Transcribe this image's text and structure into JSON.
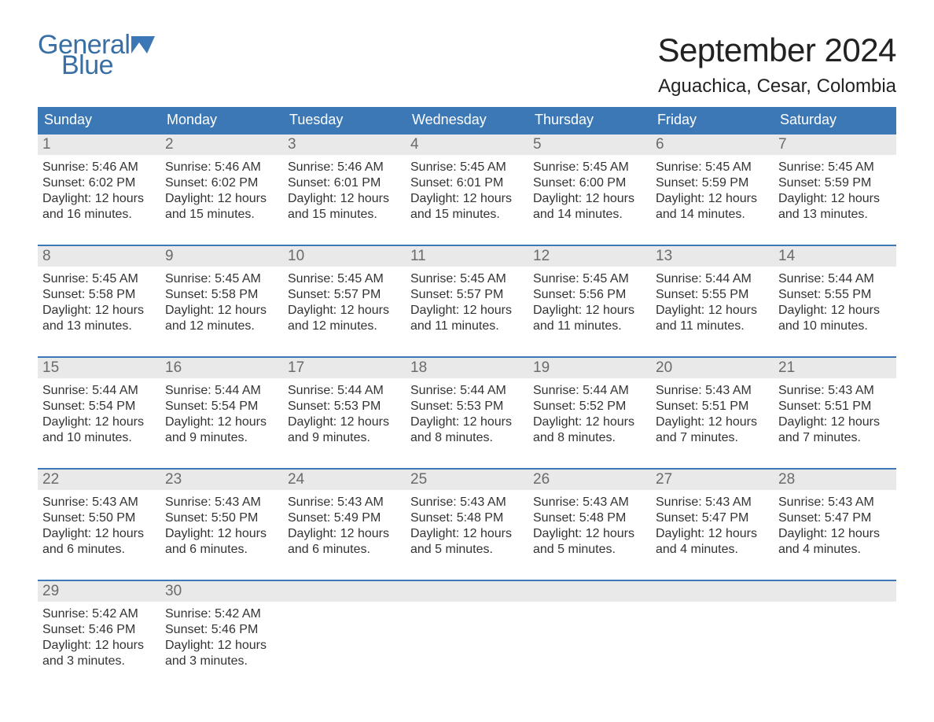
{
  "logo": {
    "text_top": "General",
    "text_bottom": "Blue",
    "accent_color": "#3b78b5"
  },
  "title": "September 2024",
  "location": "Aguachica, Cesar, Colombia",
  "colors": {
    "header_bg": "#3b78b5",
    "header_text": "#ffffff",
    "daynum_bg": "#e9e9e9",
    "daynum_text": "#6b6b6b",
    "rule": "#3b78b5",
    "body_text": "#333333",
    "background": "#ffffff"
  },
  "typography": {
    "title_fontsize": 42,
    "location_fontsize": 24,
    "dow_fontsize": 18,
    "daynum_fontsize": 19,
    "info_fontsize": 16
  },
  "days_of_week": [
    "Sunday",
    "Monday",
    "Tuesday",
    "Wednesday",
    "Thursday",
    "Friday",
    "Saturday"
  ],
  "weeks": [
    [
      {
        "n": "1",
        "sunrise": "Sunrise: 5:46 AM",
        "sunset": "Sunset: 6:02 PM",
        "dl1": "Daylight: 12 hours",
        "dl2": "and 16 minutes."
      },
      {
        "n": "2",
        "sunrise": "Sunrise: 5:46 AM",
        "sunset": "Sunset: 6:02 PM",
        "dl1": "Daylight: 12 hours",
        "dl2": "and 15 minutes."
      },
      {
        "n": "3",
        "sunrise": "Sunrise: 5:46 AM",
        "sunset": "Sunset: 6:01 PM",
        "dl1": "Daylight: 12 hours",
        "dl2": "and 15 minutes."
      },
      {
        "n": "4",
        "sunrise": "Sunrise: 5:45 AM",
        "sunset": "Sunset: 6:01 PM",
        "dl1": "Daylight: 12 hours",
        "dl2": "and 15 minutes."
      },
      {
        "n": "5",
        "sunrise": "Sunrise: 5:45 AM",
        "sunset": "Sunset: 6:00 PM",
        "dl1": "Daylight: 12 hours",
        "dl2": "and 14 minutes."
      },
      {
        "n": "6",
        "sunrise": "Sunrise: 5:45 AM",
        "sunset": "Sunset: 5:59 PM",
        "dl1": "Daylight: 12 hours",
        "dl2": "and 14 minutes."
      },
      {
        "n": "7",
        "sunrise": "Sunrise: 5:45 AM",
        "sunset": "Sunset: 5:59 PM",
        "dl1": "Daylight: 12 hours",
        "dl2": "and 13 minutes."
      }
    ],
    [
      {
        "n": "8",
        "sunrise": "Sunrise: 5:45 AM",
        "sunset": "Sunset: 5:58 PM",
        "dl1": "Daylight: 12 hours",
        "dl2": "and 13 minutes."
      },
      {
        "n": "9",
        "sunrise": "Sunrise: 5:45 AM",
        "sunset": "Sunset: 5:58 PM",
        "dl1": "Daylight: 12 hours",
        "dl2": "and 12 minutes."
      },
      {
        "n": "10",
        "sunrise": "Sunrise: 5:45 AM",
        "sunset": "Sunset: 5:57 PM",
        "dl1": "Daylight: 12 hours",
        "dl2": "and 12 minutes."
      },
      {
        "n": "11",
        "sunrise": "Sunrise: 5:45 AM",
        "sunset": "Sunset: 5:57 PM",
        "dl1": "Daylight: 12 hours",
        "dl2": "and 11 minutes."
      },
      {
        "n": "12",
        "sunrise": "Sunrise: 5:45 AM",
        "sunset": "Sunset: 5:56 PM",
        "dl1": "Daylight: 12 hours",
        "dl2": "and 11 minutes."
      },
      {
        "n": "13",
        "sunrise": "Sunrise: 5:44 AM",
        "sunset": "Sunset: 5:55 PM",
        "dl1": "Daylight: 12 hours",
        "dl2": "and 11 minutes."
      },
      {
        "n": "14",
        "sunrise": "Sunrise: 5:44 AM",
        "sunset": "Sunset: 5:55 PM",
        "dl1": "Daylight: 12 hours",
        "dl2": "and 10 minutes."
      }
    ],
    [
      {
        "n": "15",
        "sunrise": "Sunrise: 5:44 AM",
        "sunset": "Sunset: 5:54 PM",
        "dl1": "Daylight: 12 hours",
        "dl2": "and 10 minutes."
      },
      {
        "n": "16",
        "sunrise": "Sunrise: 5:44 AM",
        "sunset": "Sunset: 5:54 PM",
        "dl1": "Daylight: 12 hours",
        "dl2": "and 9 minutes."
      },
      {
        "n": "17",
        "sunrise": "Sunrise: 5:44 AM",
        "sunset": "Sunset: 5:53 PM",
        "dl1": "Daylight: 12 hours",
        "dl2": "and 9 minutes."
      },
      {
        "n": "18",
        "sunrise": "Sunrise: 5:44 AM",
        "sunset": "Sunset: 5:53 PM",
        "dl1": "Daylight: 12 hours",
        "dl2": "and 8 minutes."
      },
      {
        "n": "19",
        "sunrise": "Sunrise: 5:44 AM",
        "sunset": "Sunset: 5:52 PM",
        "dl1": "Daylight: 12 hours",
        "dl2": "and 8 minutes."
      },
      {
        "n": "20",
        "sunrise": "Sunrise: 5:43 AM",
        "sunset": "Sunset: 5:51 PM",
        "dl1": "Daylight: 12 hours",
        "dl2": "and 7 minutes."
      },
      {
        "n": "21",
        "sunrise": "Sunrise: 5:43 AM",
        "sunset": "Sunset: 5:51 PM",
        "dl1": "Daylight: 12 hours",
        "dl2": "and 7 minutes."
      }
    ],
    [
      {
        "n": "22",
        "sunrise": "Sunrise: 5:43 AM",
        "sunset": "Sunset: 5:50 PM",
        "dl1": "Daylight: 12 hours",
        "dl2": "and 6 minutes."
      },
      {
        "n": "23",
        "sunrise": "Sunrise: 5:43 AM",
        "sunset": "Sunset: 5:50 PM",
        "dl1": "Daylight: 12 hours",
        "dl2": "and 6 minutes."
      },
      {
        "n": "24",
        "sunrise": "Sunrise: 5:43 AM",
        "sunset": "Sunset: 5:49 PM",
        "dl1": "Daylight: 12 hours",
        "dl2": "and 6 minutes."
      },
      {
        "n": "25",
        "sunrise": "Sunrise: 5:43 AM",
        "sunset": "Sunset: 5:48 PM",
        "dl1": "Daylight: 12 hours",
        "dl2": "and 5 minutes."
      },
      {
        "n": "26",
        "sunrise": "Sunrise: 5:43 AM",
        "sunset": "Sunset: 5:48 PM",
        "dl1": "Daylight: 12 hours",
        "dl2": "and 5 minutes."
      },
      {
        "n": "27",
        "sunrise": "Sunrise: 5:43 AM",
        "sunset": "Sunset: 5:47 PM",
        "dl1": "Daylight: 12 hours",
        "dl2": "and 4 minutes."
      },
      {
        "n": "28",
        "sunrise": "Sunrise: 5:43 AM",
        "sunset": "Sunset: 5:47 PM",
        "dl1": "Daylight: 12 hours",
        "dl2": "and 4 minutes."
      }
    ],
    [
      {
        "n": "29",
        "sunrise": "Sunrise: 5:42 AM",
        "sunset": "Sunset: 5:46 PM",
        "dl1": "Daylight: 12 hours",
        "dl2": "and 3 minutes."
      },
      {
        "n": "30",
        "sunrise": "Sunrise: 5:42 AM",
        "sunset": "Sunset: 5:46 PM",
        "dl1": "Daylight: 12 hours",
        "dl2": "and 3 minutes."
      },
      {
        "n": "",
        "sunrise": "",
        "sunset": "",
        "dl1": "",
        "dl2": ""
      },
      {
        "n": "",
        "sunrise": "",
        "sunset": "",
        "dl1": "",
        "dl2": ""
      },
      {
        "n": "",
        "sunrise": "",
        "sunset": "",
        "dl1": "",
        "dl2": ""
      },
      {
        "n": "",
        "sunrise": "",
        "sunset": "",
        "dl1": "",
        "dl2": ""
      },
      {
        "n": "",
        "sunrise": "",
        "sunset": "",
        "dl1": "",
        "dl2": ""
      }
    ]
  ]
}
